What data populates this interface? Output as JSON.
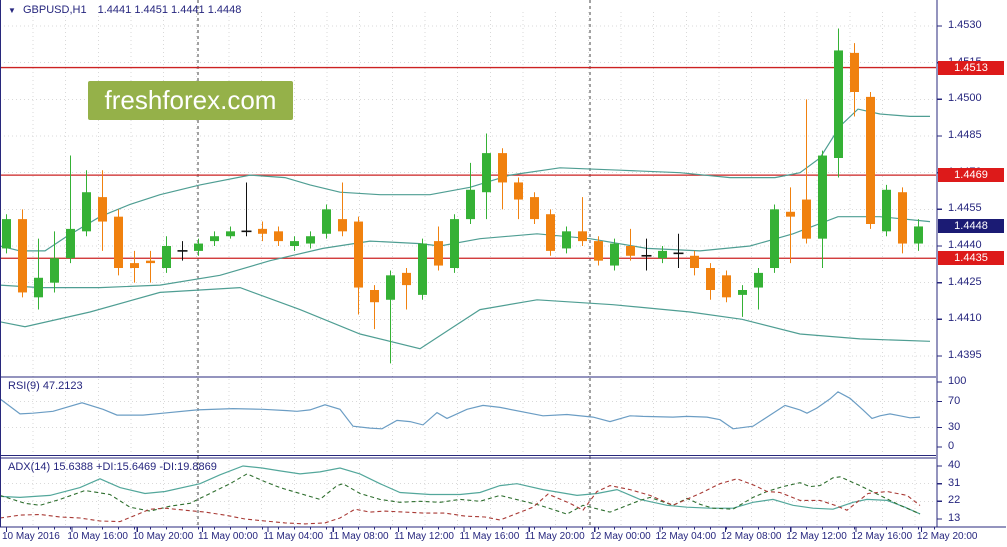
{
  "header": {
    "symbol": "GBPUSD,H1",
    "ohlc": "1.4441 1.4451 1.4441 1.4448",
    "dropdown_icon": "symbol-dropdown"
  },
  "watermark": {
    "text": "freshforex.com",
    "bg": "#95b149"
  },
  "indicators": {
    "rsi_label": "RSI(9) 47.2123",
    "adx_label": "ADX(14) 15.6388 +DI:15.6469 -DI:19.8869"
  },
  "levels": {
    "red_lines": [
      1.4513,
      1.4469,
      1.4435
    ],
    "current_price": 1.4448
  },
  "axes": {
    "price_ticks": [
      1.453,
      1.4515,
      1.45,
      1.4485,
      1.447,
      1.4455,
      1.444,
      1.4425,
      1.441,
      1.4395
    ],
    "rsi_ticks": [
      100,
      70,
      30,
      0
    ],
    "adx_ticks": [
      40,
      31,
      22,
      13
    ],
    "time_labels": [
      "10 May 2016",
      "10 May 16:00",
      "10 May 20:00",
      "11 May 00:00",
      "11 May 04:00",
      "11 May 08:00",
      "11 May 12:00",
      "11 May 16:00",
      "11 May 20:00",
      "12 May 00:00",
      "12 May 04:00",
      "12 May 08:00",
      "12 May 12:00",
      "12 May 16:00",
      "12 May 20:00"
    ]
  },
  "colors": {
    "bull": "#35b135",
    "bear": "#f0810f",
    "doji": "#111111",
    "band": "#4f9e93",
    "rsi": "#6b9dc4",
    "adx": "#53a79b",
    "plus_di": "#2f6f2f",
    "minus_di": "#a93a35",
    "red_line": "#cc2222",
    "tag_red": "#dd1a1a",
    "tag_navy": "#1b1b74",
    "navy": "#26267e",
    "grid": "#d9d9d9",
    "separator": "#444444"
  },
  "chart_data": {
    "type": "candlestick",
    "symbol": "GBPUSD",
    "timeframe": "H1",
    "price_range": [
      1.4392,
      1.453
    ],
    "candles_ohlc": [
      [
        1.4439,
        1.4453,
        1.4437,
        1.4451
      ],
      [
        1.4451,
        1.4455,
        1.4419,
        1.4421
      ],
      [
        1.4419,
        1.4443,
        1.4414,
        1.4427
      ],
      [
        1.4425,
        1.4446,
        1.4421,
        1.4435
      ],
      [
        1.4435,
        1.4477,
        1.4433,
        1.4447
      ],
      [
        1.4446,
        1.4471,
        1.4444,
        1.4462
      ],
      [
        1.446,
        1.4471,
        1.4438,
        1.445
      ],
      [
        1.4452,
        1.4455,
        1.4428,
        1.4431
      ],
      [
        1.4433,
        1.4438,
        1.4425,
        1.4431
      ],
      [
        1.4434,
        1.4438,
        1.4425,
        1.4433
      ],
      [
        1.4431,
        1.4444,
        1.4429,
        1.444
      ],
      [
        1.4438,
        1.4442,
        1.4434,
        1.4438
      ],
      [
        1.4438,
        1.4443,
        1.4436,
        1.4441
      ],
      [
        1.4442,
        1.4446,
        1.444,
        1.4444
      ],
      [
        1.4444,
        1.4448,
        1.4443,
        1.4446
      ],
      [
        1.4446,
        1.4466,
        1.4444,
        1.4446
      ],
      [
        1.4447,
        1.445,
        1.4442,
        1.4445
      ],
      [
        1.4446,
        1.4448,
        1.444,
        1.4442
      ],
      [
        1.444,
        1.4444,
        1.4438,
        1.4442
      ],
      [
        1.4441,
        1.4446,
        1.4439,
        1.4444
      ],
      [
        1.4445,
        1.4457,
        1.4443,
        1.4455
      ],
      [
        1.4451,
        1.4466,
        1.4444,
        1.4446
      ],
      [
        1.445,
        1.4452,
        1.4412,
        1.4423
      ],
      [
        1.4422,
        1.4424,
        1.4406,
        1.4417
      ],
      [
        1.4418,
        1.443,
        1.4392,
        1.4428
      ],
      [
        1.4429,
        1.4431,
        1.4414,
        1.4424
      ],
      [
        1.442,
        1.4443,
        1.4418,
        1.4441
      ],
      [
        1.4442,
        1.4448,
        1.443,
        1.4432
      ],
      [
        1.4431,
        1.4453,
        1.4429,
        1.4451
      ],
      [
        1.4451,
        1.4474,
        1.4449,
        1.4463
      ],
      [
        1.4462,
        1.4486,
        1.4451,
        1.4478
      ],
      [
        1.4478,
        1.448,
        1.4455,
        1.4466
      ],
      [
        1.4466,
        1.4468,
        1.4451,
        1.4459
      ],
      [
        1.446,
        1.4462,
        1.4449,
        1.4451
      ],
      [
        1.4453,
        1.4455,
        1.4436,
        1.4438
      ],
      [
        1.4439,
        1.4448,
        1.4437,
        1.4446
      ],
      [
        1.4446,
        1.446,
        1.444,
        1.4442
      ],
      [
        1.4442,
        1.4444,
        1.4432,
        1.4434
      ],
      [
        1.4432,
        1.4443,
        1.443,
        1.4441
      ],
      [
        1.444,
        1.4447,
        1.4434,
        1.4436
      ],
      [
        1.4436,
        1.4443,
        1.443,
        1.4436
      ],
      [
        1.4435,
        1.444,
        1.4433,
        1.4438
      ],
      [
        1.4437,
        1.4445,
        1.4431,
        1.4437
      ],
      [
        1.4436,
        1.4438,
        1.4428,
        1.4431
      ],
      [
        1.4431,
        1.4433,
        1.4418,
        1.4422
      ],
      [
        1.4428,
        1.443,
        1.4417,
        1.4419
      ],
      [
        1.442,
        1.4424,
        1.4411,
        1.4422
      ],
      [
        1.4423,
        1.4431,
        1.4414,
        1.4429
      ],
      [
        1.4431,
        1.4457,
        1.4429,
        1.4455
      ],
      [
        1.4454,
        1.4464,
        1.4433,
        1.4452
      ],
      [
        1.4459,
        1.45,
        1.4441,
        1.4443
      ],
      [
        1.4443,
        1.4479,
        1.4431,
        1.4477
      ],
      [
        1.4476,
        1.4529,
        1.4468,
        1.452
      ],
      [
        1.4519,
        1.4523,
        1.4493,
        1.4503
      ],
      [
        1.4501,
        1.4503,
        1.4447,
        1.4449
      ],
      [
        1.4446,
        1.4465,
        1.4444,
        1.4463
      ],
      [
        1.4462,
        1.4464,
        1.4437,
        1.4441
      ],
      [
        1.4441,
        1.4451,
        1.4438,
        1.4448
      ]
    ],
    "bollinger": {
      "upper": [
        [
          0,
          1.444
        ],
        [
          20,
          1.4438
        ],
        [
          45,
          1.4438
        ],
        [
          67,
          1.4444
        ],
        [
          100,
          1.4452
        ],
        [
          130,
          1.4457
        ],
        [
          160,
          1.4461
        ],
        [
          200,
          1.4465
        ],
        [
          250,
          1.4469
        ],
        [
          285,
          1.4468
        ],
        [
          310,
          1.4465
        ],
        [
          340,
          1.4462
        ],
        [
          380,
          1.4461
        ],
        [
          430,
          1.4461
        ],
        [
          470,
          1.4464
        ],
        [
          510,
          1.4469
        ],
        [
          560,
          1.4472
        ],
        [
          620,
          1.4471
        ],
        [
          680,
          1.447
        ],
        [
          730,
          1.4468
        ],
        [
          775,
          1.4468
        ],
        [
          800,
          1.447
        ],
        [
          820,
          1.4476
        ],
        [
          840,
          1.4489
        ],
        [
          858,
          1.4496
        ],
        [
          880,
          1.4494
        ],
        [
          910,
          1.4493
        ],
        [
          930,
          1.4493
        ]
      ],
      "middle": [
        [
          0,
          1.4424
        ],
        [
          40,
          1.4423
        ],
        [
          100,
          1.4423
        ],
        [
          160,
          1.4424
        ],
        [
          220,
          1.4428
        ],
        [
          270,
          1.4434
        ],
        [
          323,
          1.4439
        ],
        [
          370,
          1.4442
        ],
        [
          420,
          1.4441
        ],
        [
          440,
          1.444
        ],
        [
          480,
          1.4443
        ],
        [
          537,
          1.4445
        ],
        [
          590,
          1.4443
        ],
        [
          647,
          1.4439
        ],
        [
          700,
          1.4438
        ],
        [
          750,
          1.444
        ],
        [
          793,
          1.4445
        ],
        [
          838,
          1.4452
        ],
        [
          880,
          1.4452
        ],
        [
          930,
          1.445
        ]
      ],
      "lower": [
        [
          0,
          1.4409
        ],
        [
          25,
          1.4407
        ],
        [
          90,
          1.4413
        ],
        [
          160,
          1.4421
        ],
        [
          240,
          1.4423
        ],
        [
          300,
          1.4414
        ],
        [
          360,
          1.4404
        ],
        [
          420,
          1.4398
        ],
        [
          450,
          1.4406
        ],
        [
          480,
          1.4414
        ],
        [
          537,
          1.4418
        ],
        [
          613,
          1.4416
        ],
        [
          690,
          1.4413
        ],
        [
          742,
          1.441
        ],
        [
          800,
          1.4404
        ],
        [
          860,
          1.4402
        ],
        [
          930,
          1.4401
        ]
      ]
    },
    "rsi": {
      "period": 9,
      "value": 47.2123,
      "range": [
        0,
        100
      ],
      "points": [
        [
          0,
          74
        ],
        [
          20,
          51
        ],
        [
          33,
          52
        ],
        [
          53,
          55
        ],
        [
          82,
          68
        ],
        [
          103,
          58
        ],
        [
          117,
          49
        ],
        [
          143,
          49
        ],
        [
          163,
          52
        ],
        [
          197,
          57
        ],
        [
          233,
          59
        ],
        [
          263,
          58
        ],
        [
          287,
          56
        ],
        [
          297,
          55
        ],
        [
          310,
          57
        ],
        [
          325,
          65
        ],
        [
          340,
          58
        ],
        [
          353,
          32
        ],
        [
          370,
          29
        ],
        [
          382,
          28
        ],
        [
          397,
          41
        ],
        [
          410,
          39
        ],
        [
          423,
          34
        ],
        [
          437,
          53
        ],
        [
          447,
          44
        ],
        [
          467,
          58
        ],
        [
          483,
          64
        ],
        [
          500,
          61
        ],
        [
          543,
          48
        ],
        [
          567,
          50
        ],
        [
          593,
          46
        ],
        [
          610,
          39
        ],
        [
          630,
          48
        ],
        [
          643,
          47
        ],
        [
          673,
          46
        ],
        [
          687,
          47
        ],
        [
          707,
          46
        ],
        [
          720,
          42
        ],
        [
          733,
          28
        ],
        [
          753,
          32
        ],
        [
          767,
          46
        ],
        [
          785,
          64
        ],
        [
          800,
          57
        ],
        [
          807,
          52
        ],
        [
          817,
          60
        ],
        [
          830,
          74
        ],
        [
          838,
          85
        ],
        [
          850,
          75
        ],
        [
          863,
          57
        ],
        [
          872,
          44
        ],
        [
          880,
          48
        ],
        [
          890,
          51
        ],
        [
          900,
          48
        ],
        [
          910,
          45
        ],
        [
          920,
          46
        ]
      ]
    },
    "adx": {
      "period": 14,
      "adx_value": 15.6388,
      "plus_di_value": 15.6469,
      "minus_di_value": 19.8869,
      "adx_points": [
        [
          0,
          24.5
        ],
        [
          20,
          24
        ],
        [
          50,
          25
        ],
        [
          80,
          29
        ],
        [
          100,
          33.5
        ],
        [
          120,
          29
        ],
        [
          145,
          26
        ],
        [
          165,
          27
        ],
        [
          200,
          31
        ],
        [
          220,
          35.5
        ],
        [
          243,
          40
        ],
        [
          262,
          39
        ],
        [
          280,
          37.5
        ],
        [
          300,
          36
        ],
        [
          320,
          37
        ],
        [
          340,
          39
        ],
        [
          360,
          36
        ],
        [
          380,
          31
        ],
        [
          400,
          26.5
        ],
        [
          430,
          25.5
        ],
        [
          460,
          25.5
        ],
        [
          480,
          26.5
        ],
        [
          500,
          30
        ],
        [
          517,
          31
        ],
        [
          543,
          28
        ],
        [
          577,
          25
        ],
        [
          597,
          26
        ],
        [
          617,
          28
        ],
        [
          640,
          23
        ],
        [
          667,
          20
        ],
        [
          687,
          19
        ],
        [
          710,
          18.5
        ],
        [
          733,
          18.5
        ],
        [
          753,
          21.5
        ],
        [
          773,
          23
        ],
        [
          793,
          20
        ],
        [
          813,
          18.5
        ],
        [
          833,
          18
        ],
        [
          853,
          21.5
        ],
        [
          867,
          23
        ],
        [
          887,
          22.5
        ],
        [
          905,
          19
        ],
        [
          920,
          15.6
        ]
      ],
      "plus_di_points": [
        [
          0,
          25
        ],
        [
          25,
          21
        ],
        [
          40,
          20
        ],
        [
          60,
          23
        ],
        [
          85,
          27.5
        ],
        [
          110,
          25.5
        ],
        [
          130,
          19
        ],
        [
          150,
          17
        ],
        [
          170,
          19.5
        ],
        [
          190,
          21
        ],
        [
          210,
          26
        ],
        [
          230,
          31
        ],
        [
          247,
          36
        ],
        [
          265,
          32
        ],
        [
          280,
          29
        ],
        [
          300,
          26
        ],
        [
          320,
          23
        ],
        [
          337,
          30
        ],
        [
          343,
          31
        ],
        [
          360,
          26
        ],
        [
          380,
          23
        ],
        [
          400,
          21.5
        ],
        [
          420,
          22
        ],
        [
          440,
          21.5
        ],
        [
          460,
          23
        ],
        [
          480,
          22
        ],
        [
          500,
          25
        ],
        [
          540,
          20
        ],
        [
          567,
          15.5
        ],
        [
          583,
          20
        ],
        [
          610,
          16.5
        ],
        [
          640,
          22.5
        ],
        [
          650,
          24
        ],
        [
          673,
          20
        ],
        [
          687,
          23.5
        ],
        [
          700,
          20.5
        ],
        [
          713,
          18.5
        ],
        [
          733,
          18
        ],
        [
          753,
          24
        ],
        [
          767,
          27
        ],
        [
          783,
          29.5
        ],
        [
          800,
          31.5
        ],
        [
          810,
          29.5
        ],
        [
          820,
          30
        ],
        [
          833,
          34
        ],
        [
          840,
          34.5
        ],
        [
          860,
          30
        ],
        [
          880,
          25
        ],
        [
          900,
          20
        ],
        [
          920,
          15.6
        ]
      ],
      "minus_di_points": [
        [
          0,
          13.5
        ],
        [
          20,
          15
        ],
        [
          40,
          15.3
        ],
        [
          60,
          14
        ],
        [
          80,
          13.5
        ],
        [
          100,
          12
        ],
        [
          120,
          11.7
        ],
        [
          150,
          18
        ],
        [
          165,
          18.5
        ],
        [
          185,
          17.5
        ],
        [
          205,
          16.5
        ],
        [
          225,
          15
        ],
        [
          245,
          13
        ],
        [
          265,
          12
        ],
        [
          285,
          11
        ],
        [
          305,
          10.5
        ],
        [
          325,
          11
        ],
        [
          340,
          13.5
        ],
        [
          355,
          18
        ],
        [
          370,
          16.5
        ],
        [
          385,
          17
        ],
        [
          405,
          16.5
        ],
        [
          425,
          16
        ],
        [
          445,
          16
        ],
        [
          465,
          14.5
        ],
        [
          485,
          14
        ],
        [
          500,
          12.5
        ],
        [
          533,
          19
        ],
        [
          548,
          25.7
        ],
        [
          570,
          21
        ],
        [
          583,
          17.5
        ],
        [
          597,
          27
        ],
        [
          610,
          30
        ],
        [
          630,
          28
        ],
        [
          650,
          25
        ],
        [
          673,
          20
        ],
        [
          700,
          26
        ],
        [
          720,
          31
        ],
        [
          737,
          33.5
        ],
        [
          755,
          30
        ],
        [
          767,
          27
        ],
        [
          780,
          26.5
        ],
        [
          800,
          22.5
        ],
        [
          820,
          22.5
        ],
        [
          835,
          20
        ],
        [
          847,
          17.5
        ],
        [
          868,
          26
        ],
        [
          887,
          27
        ],
        [
          907,
          25
        ],
        [
          920,
          19.9
        ]
      ]
    }
  }
}
